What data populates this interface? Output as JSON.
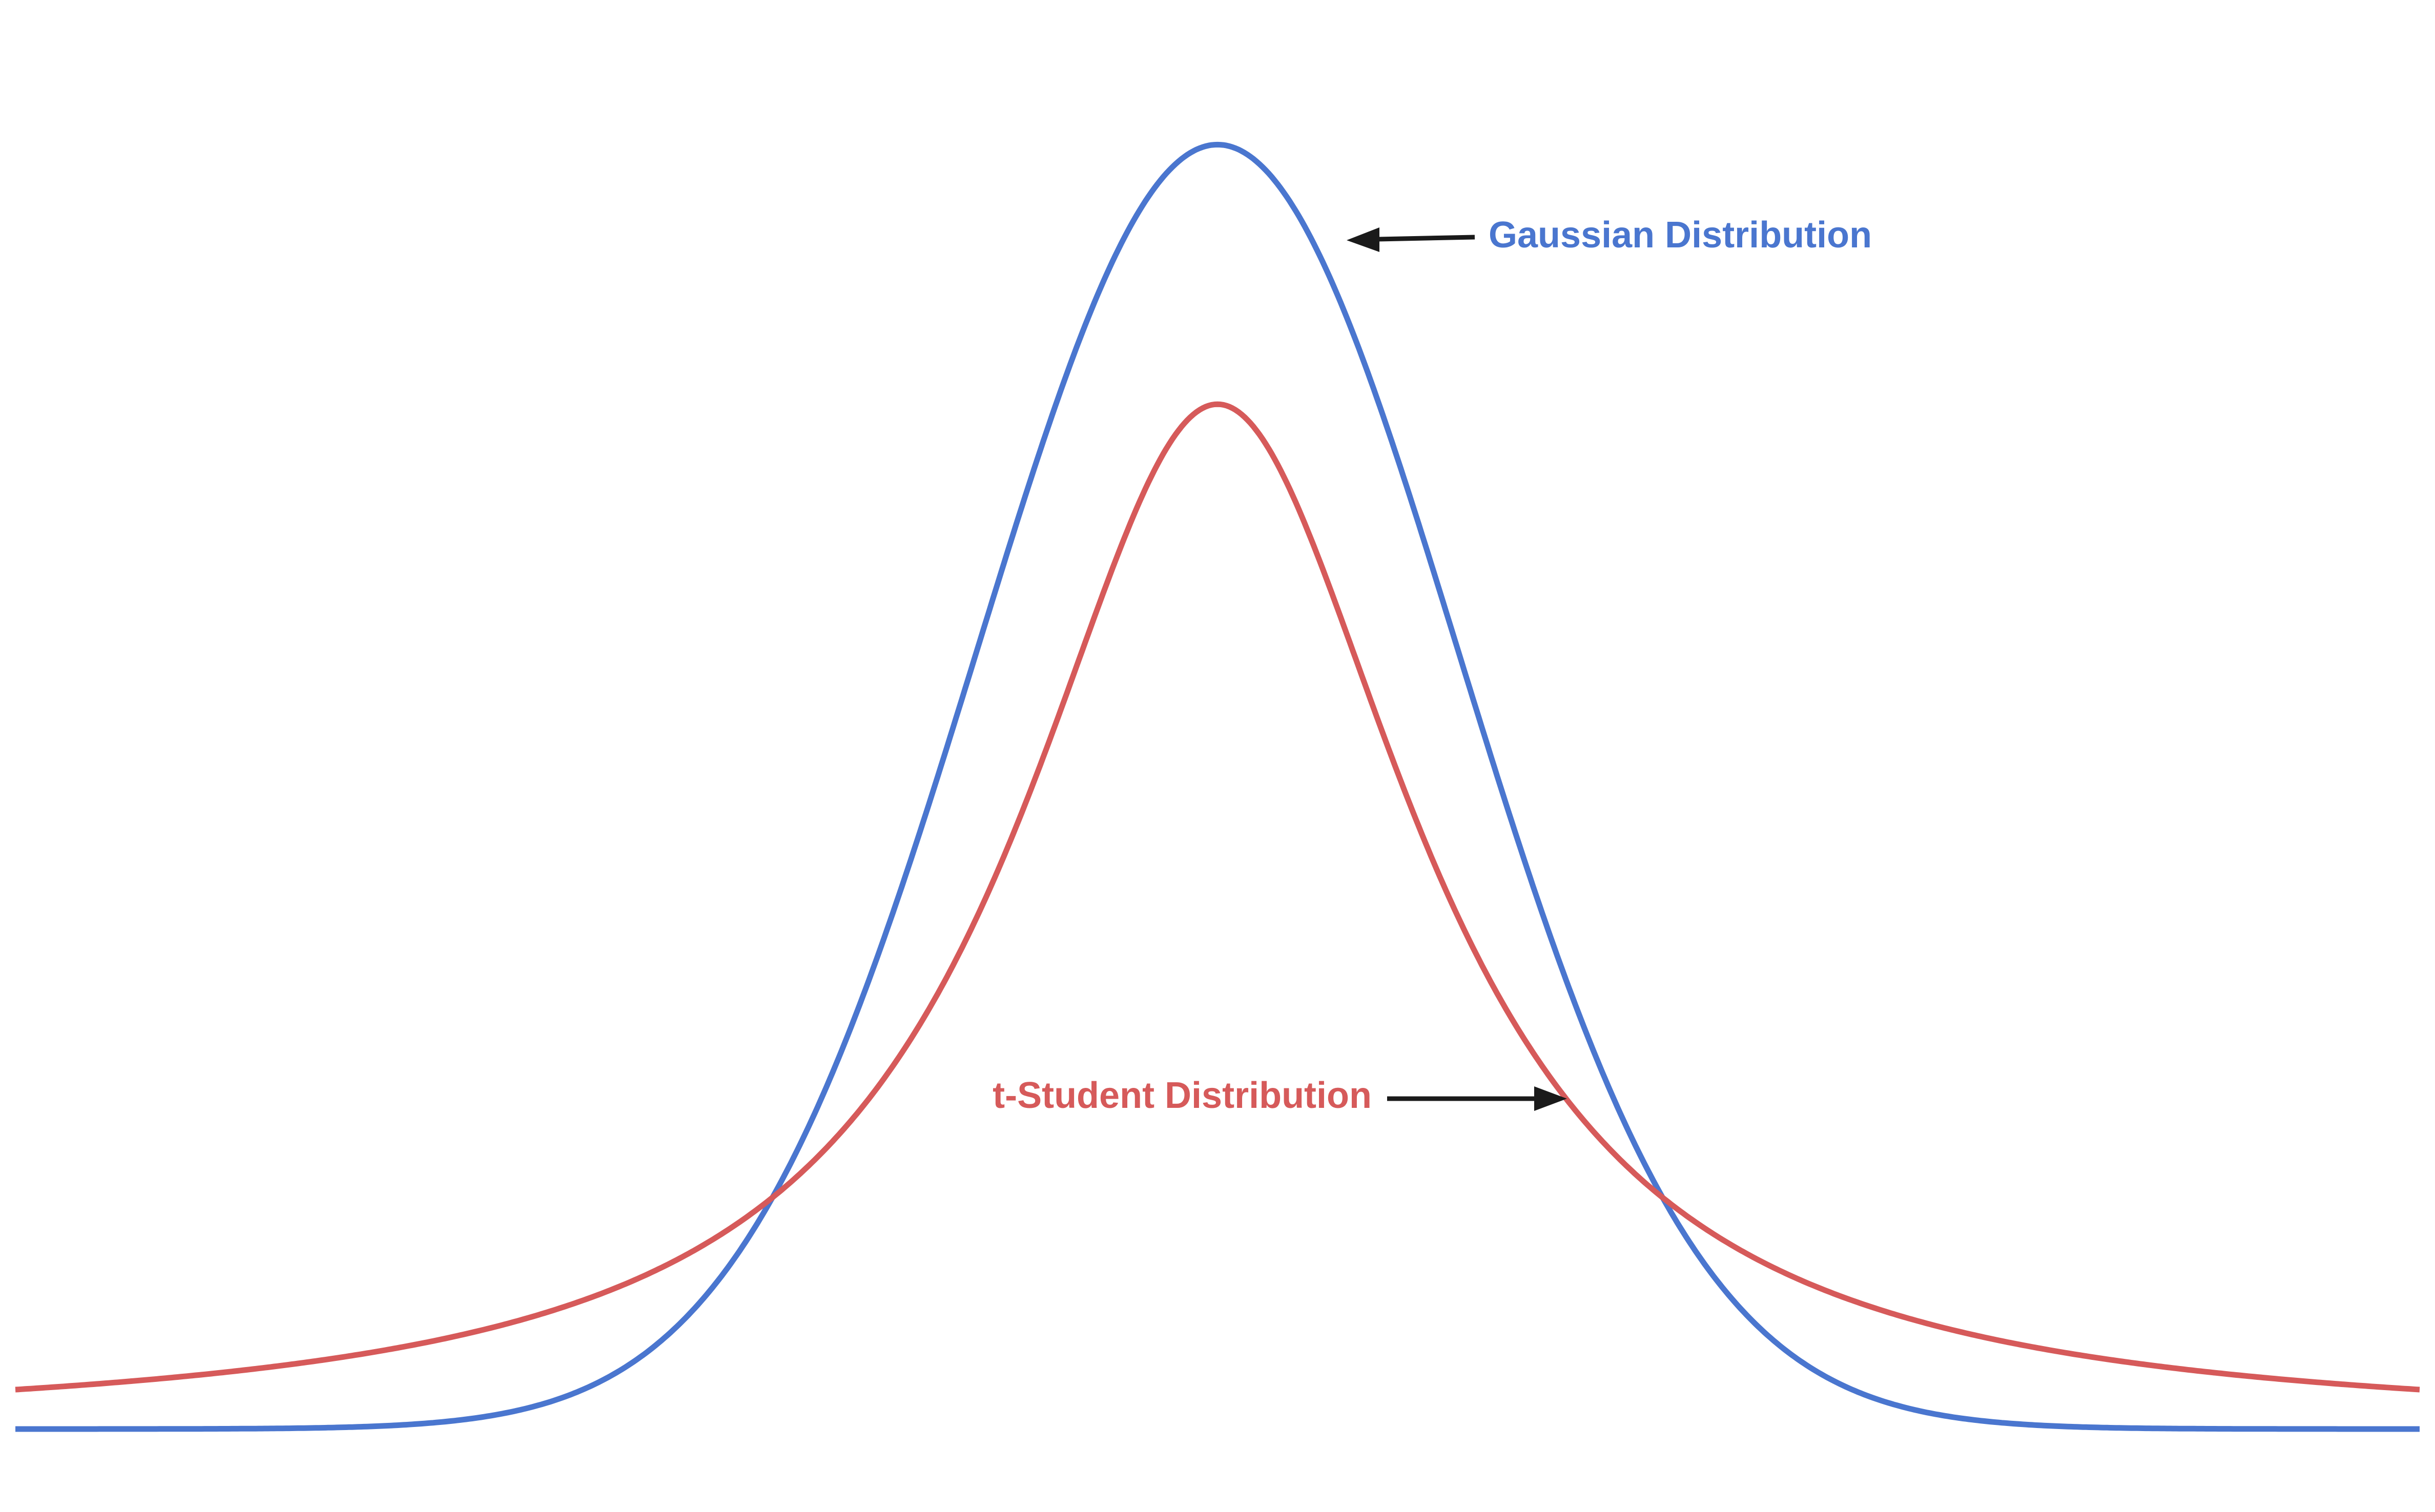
{
  "chart_data": {
    "type": "line",
    "title": "",
    "xlabel": "",
    "ylabel": "",
    "xlim": [
      -5,
      5
    ],
    "ylim": [
      0,
      0.42
    ],
    "grid": false,
    "axes_visible": false,
    "series": [
      {
        "name": "Gaussian Distribution",
        "distribution": "normal",
        "mean": 0,
        "std": 1,
        "color": "#4a76cf"
      },
      {
        "name": "t-Student Distribution",
        "distribution": "student-t",
        "degrees_of_freedom": 1,
        "color": "#d65a5a"
      }
    ]
  }
}
